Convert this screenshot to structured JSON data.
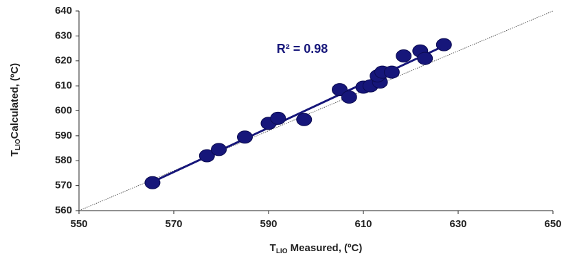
{
  "chart_data": {
    "type": "scatter",
    "x_label": {
      "main": "T",
      "sub": "LIO",
      "rest": " Measured, (ºC)"
    },
    "y_label": {
      "main": "T",
      "sub": "LIO",
      "rest": "Calculated, (ºC)"
    },
    "annotation": "R² = 0.98",
    "series": [
      {
        "color": "#16167a",
        "x": [
          565.5,
          577,
          579.5,
          585,
          590,
          592,
          597.5,
          605,
          607,
          610,
          611.5,
          613.5,
          613,
          614,
          616,
          618.5,
          622,
          623,
          627
        ],
        "values": [
          571.2,
          582,
          584.5,
          589.5,
          595,
          597,
          596.5,
          608.5,
          605.5,
          609.5,
          610,
          611.5,
          614,
          615.5,
          615.5,
          622,
          624,
          621,
          626.5
        ]
      }
    ],
    "trendline": {
      "x": [
        565.5,
        627
      ],
      "y": [
        571.5,
        626
      ],
      "color": "#16167a"
    },
    "reference_line": {
      "x": [
        550,
        650
      ],
      "y": [
        560,
        640
      ],
      "color": "#555555"
    },
    "xlim": [
      550,
      650
    ],
    "xticks": [
      550,
      570,
      590,
      610,
      630,
      650
    ],
    "ylim": [
      560,
      640
    ],
    "yticks": [
      560,
      570,
      580,
      590,
      600,
      610,
      620,
      630,
      640
    ],
    "grid": false
  }
}
